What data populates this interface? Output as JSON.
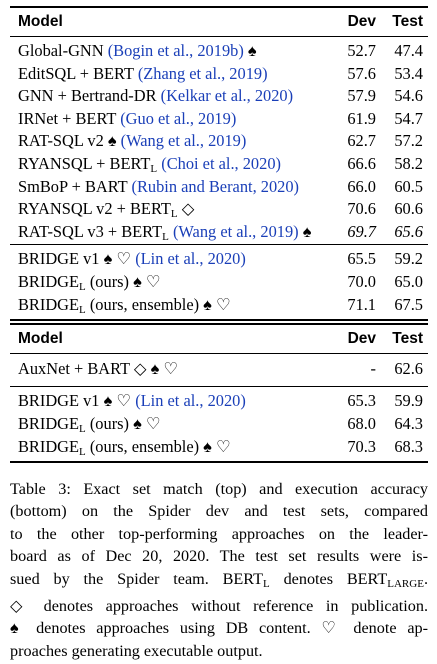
{
  "top": {
    "header": {
      "model": "Model",
      "dev": "Dev",
      "test": "Test"
    },
    "group1": [
      {
        "name": "Global-GNN ",
        "cite": "(Bogin et al., 2019b)",
        "sym": " ♠",
        "dev": "52.7",
        "test": "47.4"
      },
      {
        "name": "EditSQL + BERT ",
        "cite": "(Zhang et al., 2019)",
        "sym": "",
        "dev": "57.6",
        "test": "53.4"
      },
      {
        "name": "GNN + Bertrand-DR ",
        "cite": "(Kelkar et al., 2020)",
        "sym": "",
        "dev": "57.9",
        "test": "54.6"
      },
      {
        "name": "IRNet + BERT ",
        "cite": "(Guo et al., 2019)",
        "sym": "",
        "dev": "61.9",
        "test": "54.7"
      },
      {
        "name": "RAT-SQL v2 ♠ ",
        "cite": "(Wang et al., 2019)",
        "sym": "",
        "dev": "62.7",
        "test": "57.2"
      },
      {
        "name": "RYANSQL + BERT",
        "sub": "L",
        "cite": " (Choi et al., 2020)",
        "sym": "",
        "dev": "66.6",
        "test": "58.2"
      },
      {
        "name": "SmBoP + BART ",
        "cite": "(Rubin and Berant, 2020)",
        "sym": "",
        "dev": "66.0",
        "test": "60.5"
      },
      {
        "name": "RYANSQL v2 + BERT",
        "sub": "L",
        "cite": "",
        "sym": " ◇",
        "dev": "70.6",
        "test": "60.6"
      },
      {
        "name": "RAT-SQL v3 + BERT",
        "sub": "L",
        "cite": " (Wang et al., 2019)",
        "sym": " ♠",
        "dev": "69.7",
        "test": "65.6",
        "italic": true
      }
    ],
    "group2": [
      {
        "name": "BRIDGE v1 ♠ ♡ ",
        "cite": "(Lin et al., 2020)",
        "dev": "65.5",
        "test": "59.2"
      },
      {
        "name": "BRIDGE",
        "sub": "L",
        "rest": " (ours) ♠ ♡",
        "dev": "70.0",
        "test": "65.0"
      },
      {
        "name": "BRIDGE",
        "sub": "L",
        "rest": " (ours, ensemble) ♠ ♡",
        "dev": "71.1",
        "test": "67.5"
      }
    ]
  },
  "bottom": {
    "header": {
      "model": "Model",
      "dev": "Dev",
      "test": "Test"
    },
    "group1": [
      {
        "name": "AuxNet + BART ◇ ♠ ♡",
        "dev": "-",
        "test": "62.6"
      }
    ],
    "group2": [
      {
        "name": "BRIDGE v1 ♠ ♡ ",
        "cite": "(Lin et al., 2020)",
        "dev": "65.3",
        "test": "59.9"
      },
      {
        "name": "BRIDGE",
        "sub": "L",
        "rest": " (ours) ♠ ♡",
        "dev": "68.0",
        "test": "64.3"
      },
      {
        "name": "BRIDGE",
        "sub": "L",
        "rest": " (ours, ensemble) ♠ ♡",
        "dev": "70.3",
        "test": "68.3"
      }
    ]
  },
  "caption": {
    "l1": "Table 3: Exact set match (top) and execution accuracy",
    "l2": "(bottom) on the Spider dev and test sets, compared",
    "l3": "to the other top-performing approaches on the leader-",
    "l4": "board as of Dec 20, 2020. The test set results were is-",
    "l5a": "sued by the Spider team. BERT",
    "l5b": "L",
    "l5c": " denotes BERT",
    "l5d": "LARGE",
    "l5e": ".",
    "l6": "◇ denotes approaches without reference in publication.",
    "l7": "♠ denotes approaches using DB content. ♡ denote ap-",
    "l8": "proaches generating executable output."
  }
}
